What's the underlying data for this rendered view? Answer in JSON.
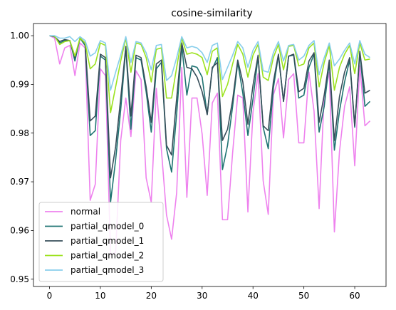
{
  "chart_data": {
    "type": "line",
    "title": "cosine-similarity",
    "xlabel": "",
    "ylabel": "",
    "xlim": [
      -3.15,
      66.15
    ],
    "ylim": [
      0.9485,
      1.0025
    ],
    "x_ticks": [
      0,
      10,
      20,
      30,
      40,
      50,
      60
    ],
    "y_ticks": [
      0.95,
      0.96,
      0.97,
      0.98,
      0.99,
      1.0
    ],
    "y_tick_labels": [
      "0.95",
      "0.96",
      "0.97",
      "0.98",
      "0.99",
      "1.00"
    ],
    "grid": false,
    "legend_position": "lower-left",
    "x": [
      0,
      1,
      2,
      3,
      4,
      5,
      6,
      7,
      8,
      9,
      10,
      11,
      12,
      13,
      14,
      15,
      16,
      17,
      18,
      19,
      20,
      21,
      22,
      23,
      24,
      25,
      26,
      27,
      28,
      29,
      30,
      31,
      32,
      33,
      34,
      35,
      36,
      37,
      38,
      39,
      40,
      41,
      42,
      43,
      44,
      45,
      46,
      47,
      48,
      49,
      50,
      51,
      52,
      53,
      54,
      55,
      56,
      57,
      58,
      59,
      60,
      61,
      62,
      63
    ],
    "series": [
      {
        "name": "normal",
        "color": "#ee82ee",
        "values": [
          1.0,
          0.9995,
          0.9942,
          0.9975,
          0.998,
          0.9918,
          0.9985,
          0.9975,
          0.9662,
          0.9695,
          0.9932,
          0.9918,
          0.955,
          0.9555,
          0.9785,
          0.9872,
          0.9793,
          0.9928,
          0.991,
          0.9708,
          0.9658,
          0.9892,
          0.9765,
          0.9632,
          0.9582,
          0.9678,
          0.9935,
          0.9668,
          0.9872,
          0.9872,
          0.9798,
          0.9672,
          0.9862,
          0.9882,
          0.9622,
          0.9622,
          0.976,
          0.9878,
          0.9872,
          0.9638,
          0.9843,
          0.9922,
          0.9702,
          0.9633,
          0.9878,
          0.9912,
          0.979,
          0.991,
          0.9922,
          0.978,
          0.978,
          0.9925,
          0.9845,
          0.9645,
          0.9878,
          0.9925,
          0.9597,
          0.9762,
          0.9855,
          0.9895,
          0.9733,
          0.9938,
          0.9815,
          0.9825
        ]
      },
      {
        "name": "partial_qmodel_0",
        "color": "#1e7372",
        "values": [
          1.0,
          0.9998,
          0.9985,
          0.999,
          0.999,
          0.9948,
          0.9995,
          0.998,
          0.9795,
          0.9805,
          0.9958,
          0.995,
          0.9658,
          0.9745,
          0.9848,
          0.9975,
          0.9808,
          0.9955,
          0.995,
          0.9885,
          0.9802,
          0.9932,
          0.9945,
          0.9768,
          0.972,
          0.984,
          0.998,
          0.9878,
          0.9938,
          0.9935,
          0.9915,
          0.9838,
          0.9932,
          0.9955,
          0.9725,
          0.9775,
          0.9855,
          0.9945,
          0.9882,
          0.9795,
          0.987,
          0.9958,
          0.9812,
          0.9768,
          0.9892,
          0.996,
          0.9865,
          0.9958,
          0.996,
          0.9872,
          0.9878,
          0.9935,
          0.9962,
          0.9802,
          0.9855,
          0.9945,
          0.9765,
          0.9845,
          0.9905,
          0.995,
          0.9812,
          0.9965,
          0.9855,
          0.9865
        ]
      },
      {
        "name": "partial_qmodel_1",
        "color": "#374e5a",
        "values": [
          1.0,
          0.9998,
          0.9988,
          0.9992,
          0.999,
          0.9955,
          0.9995,
          0.9985,
          0.9825,
          0.9835,
          0.9962,
          0.9955,
          0.9708,
          0.9772,
          0.9872,
          0.9978,
          0.9835,
          0.996,
          0.9955,
          0.9895,
          0.9822,
          0.9942,
          0.995,
          0.9775,
          0.9755,
          0.9872,
          0.9985,
          0.9935,
          0.9932,
          0.9915,
          0.9885,
          0.9838,
          0.9935,
          0.9945,
          0.9785,
          0.9808,
          0.9868,
          0.995,
          0.9905,
          0.9818,
          0.9898,
          0.996,
          0.9815,
          0.9805,
          0.9905,
          0.9962,
          0.9865,
          0.9958,
          0.9962,
          0.9885,
          0.9892,
          0.9948,
          0.9965,
          0.9822,
          0.9878,
          0.995,
          0.9785,
          0.9875,
          0.9925,
          0.9955,
          0.9815,
          0.9968,
          0.9882,
          0.9888
        ]
      },
      {
        "name": "partial_qmodel_2",
        "color": "#9be21e",
        "values": [
          1.0,
          0.9999,
          0.9982,
          0.9988,
          0.999,
          0.9958,
          0.9995,
          0.9985,
          0.9932,
          0.9942,
          0.9985,
          0.998,
          0.9842,
          0.9895,
          0.9948,
          0.9995,
          0.9925,
          0.9985,
          0.9982,
          0.9955,
          0.9905,
          0.9972,
          0.9975,
          0.9872,
          0.9872,
          0.9935,
          0.9995,
          0.9962,
          0.9965,
          0.9962,
          0.9955,
          0.992,
          0.9968,
          0.9975,
          0.9875,
          0.99,
          0.9942,
          0.9982,
          0.9962,
          0.9915,
          0.996,
          0.9982,
          0.9915,
          0.9908,
          0.9955,
          0.9982,
          0.993,
          0.9978,
          0.998,
          0.9938,
          0.9942,
          0.9975,
          0.9985,
          0.9895,
          0.9945,
          0.998,
          0.9888,
          0.9935,
          0.9962,
          0.998,
          0.9922,
          0.9985,
          0.995,
          0.9952
        ]
      },
      {
        "name": "partial_qmodel_3",
        "color": "#87ceeb",
        "values": [
          1.0,
          1.0,
          0.9995,
          0.9995,
          0.9998,
          0.9988,
          0.9998,
          0.999,
          0.9958,
          0.9965,
          0.999,
          0.9985,
          0.9888,
          0.9925,
          0.996,
          0.9998,
          0.9945,
          0.9988,
          0.9985,
          0.9965,
          0.993,
          0.998,
          0.9982,
          0.9908,
          0.9918,
          0.9955,
          0.9998,
          0.9975,
          0.9978,
          0.9975,
          0.9965,
          0.9945,
          0.998,
          0.9985,
          0.991,
          0.9935,
          0.996,
          0.9988,
          0.9975,
          0.9935,
          0.997,
          0.9988,
          0.9928,
          0.9925,
          0.9965,
          0.9988,
          0.9948,
          0.998,
          0.9982,
          0.995,
          0.9958,
          0.998,
          0.999,
          0.992,
          0.9955,
          0.9985,
          0.9938,
          0.9952,
          0.997,
          0.9985,
          0.9942,
          0.999,
          0.9962,
          0.9955
        ]
      }
    ]
  }
}
